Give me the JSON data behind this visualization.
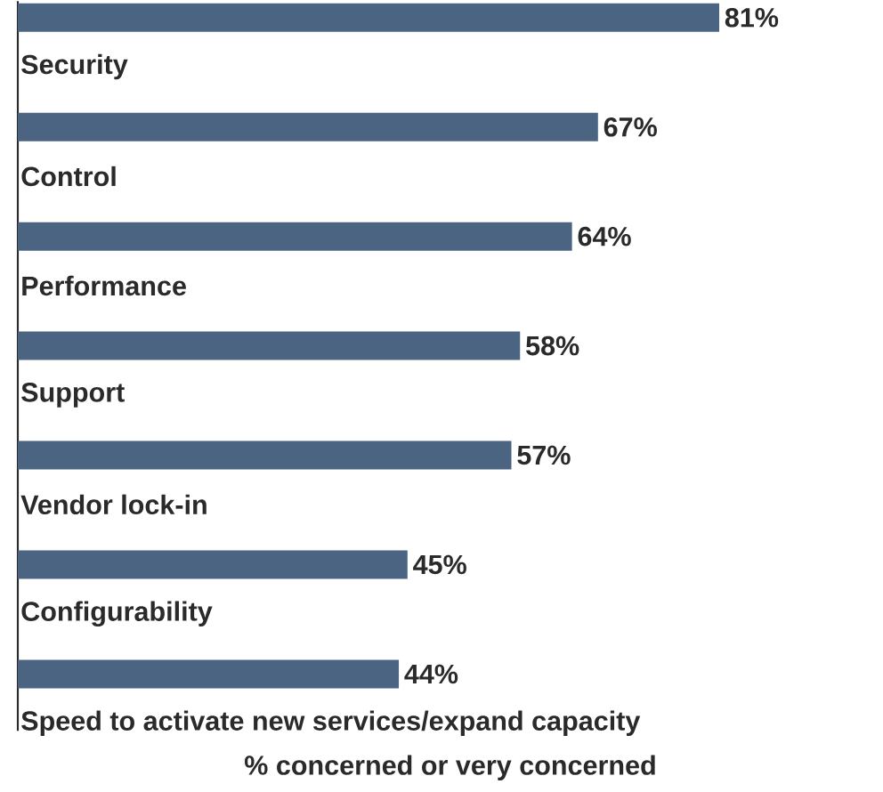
{
  "chart_data": {
    "type": "bar",
    "orientation": "horizontal",
    "categories": [
      "Security",
      "Control",
      "Performance",
      "Support",
      "Vendor lock-in",
      "Configurability",
      "Speed to activate new services/expand capacity"
    ],
    "values": [
      81,
      67,
      64,
      58,
      57,
      45,
      44
    ],
    "value_labels": [
      "81%",
      "67%",
      "64%",
      "58%",
      "57%",
      "45%",
      "44%"
    ],
    "color": "#4a6482",
    "xlabel": "% concerned or very concerned"
  }
}
